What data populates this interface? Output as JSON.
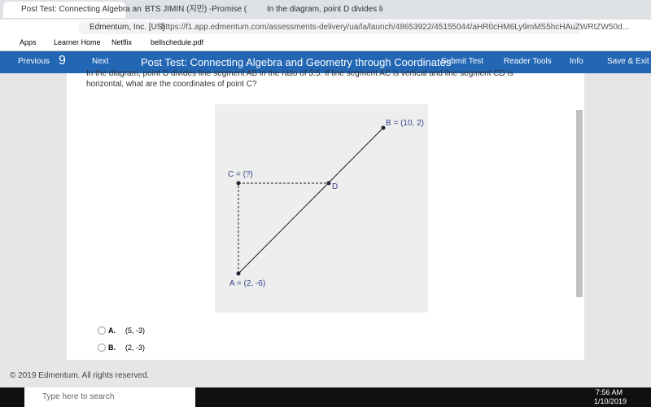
{
  "tabs": [
    "Post Test: Connecting Algebra an",
    "BTS JIMIN (지민) -Promise (",
    "In the diagram, point D divides li"
  ],
  "address": {
    "site": "Edmentum, Inc. [US]",
    "url": "https://f1.app.edmentum.com/assessments-delivery/ua/la/launch/48653922/45155044/aHR0cHM6Ly9mMS5hcHAuZWRtZW50d..."
  },
  "bookmarks": [
    "Apps",
    "Learner Home",
    "Netflix",
    "bellschedule.pdf"
  ],
  "toolbar": {
    "previous": "Previous",
    "question_number": "9",
    "next": "Next",
    "title": "Post Test: Connecting Algebra and Geometry through Coordinates",
    "submit": "Submit Test",
    "reader_tools": "Reader Tools",
    "info": "Info",
    "save_exit": "Save & Exit"
  },
  "question": "In the diagram, point D divides line segment AB in the ratio of 3:5. If line segment AC is vertical and line segment CD is horizontal, what are the coordinates of point C?",
  "diagram": {
    "b_label": "B = (10, 2)",
    "c_label": "C = (?)",
    "d_label": "D",
    "a_label": "A = (2, -6)"
  },
  "choices": [
    {
      "letter": "A.",
      "text": "(5, -3)"
    },
    {
      "letter": "B.",
      "text": "(2, -3)"
    }
  ],
  "footer": "© 2019 Edmentum. All rights reserved.",
  "taskbar": {
    "search": "Type here to search",
    "time": "7:56 AM",
    "date": "1/10/2019"
  }
}
